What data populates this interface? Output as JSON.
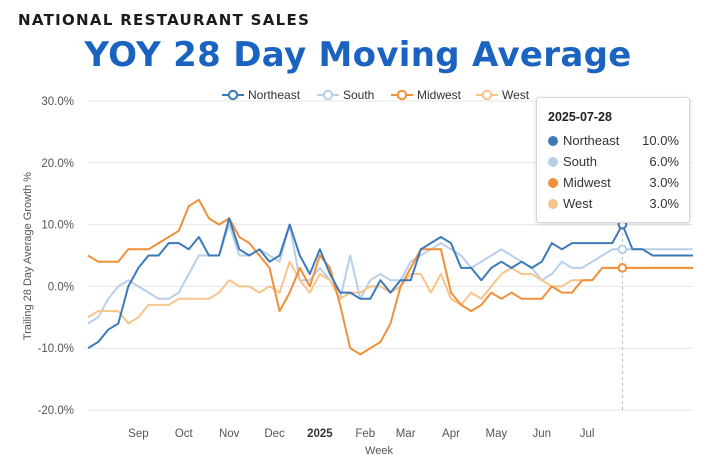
{
  "header": {
    "supertitle": "NATIONAL RESTAURANT SALES",
    "title": "YOY 28 Day Moving Average"
  },
  "colors": {
    "title": "#1a63c0",
    "grid": "#e6e6e6",
    "crosshair": "#bbbbbb"
  },
  "tooltip": {
    "date": "2025-07-28",
    "rows": [
      {
        "name": "Northeast",
        "value": "10.0%",
        "color": "#3d7ab8"
      },
      {
        "name": "South",
        "value": "6.0%",
        "color": "#b8cfea"
      },
      {
        "name": "Midwest",
        "value": "3.0%",
        "color": "#f0903a"
      },
      {
        "name": "West",
        "value": "3.0%",
        "color": "#f7c48a"
      }
    ]
  },
  "chart_data": {
    "type": "line",
    "title": "YOY 28 Day Moving Average",
    "xlabel": "Week",
    "ylabel": "Trailing 28 Day Average Growth %",
    "ylim": [
      -20,
      30
    ],
    "yticks": [
      -20,
      -10,
      0,
      10,
      20,
      30
    ],
    "ytick_labels": [
      "-20.0%",
      "-10.0%",
      "0.0%",
      "10.0%",
      "20.0%",
      "30.0%"
    ],
    "x": [
      0,
      1,
      2,
      3,
      4,
      5,
      6,
      7,
      8,
      9,
      10,
      11,
      12,
      13,
      14,
      15,
      16,
      17,
      18,
      19,
      20,
      21,
      22,
      23,
      24,
      25,
      26,
      27,
      28,
      29,
      30,
      31,
      32,
      33,
      34,
      35,
      36,
      37,
      38,
      39,
      40,
      41,
      42,
      43,
      44,
      45,
      46,
      47,
      48,
      49,
      50,
      51,
      52,
      53,
      54,
      55,
      56,
      57,
      58,
      59,
      60
    ],
    "xticks": [
      {
        "x": 5,
        "label": "Sep"
      },
      {
        "x": 9.5,
        "label": "Oct"
      },
      {
        "x": 14,
        "label": "Nov"
      },
      {
        "x": 18.5,
        "label": "Dec"
      },
      {
        "x": 23,
        "label": "2025"
      },
      {
        "x": 27.5,
        "label": "Feb"
      },
      {
        "x": 31.5,
        "label": "Mar"
      },
      {
        "x": 36,
        "label": "Apr"
      },
      {
        "x": 40.5,
        "label": "May"
      },
      {
        "x": 45,
        "label": "Jun"
      },
      {
        "x": 49.5,
        "label": "Jul"
      }
    ],
    "bold_tick": "2025",
    "legend": [
      "Northeast",
      "South",
      "Midwest",
      "West"
    ],
    "legend_position": "top",
    "series": [
      {
        "name": "Northeast",
        "color": "#3d7ab8",
        "values": [
          -10,
          -9,
          -7,
          -6,
          0,
          3,
          5,
          5,
          7,
          7,
          6,
          8,
          5,
          5,
          11,
          6,
          5,
          6,
          4,
          5,
          10,
          5,
          2,
          6,
          2,
          -1,
          -1,
          -2,
          -2,
          1,
          -1,
          1,
          1,
          6,
          7,
          8,
          7,
          3,
          3,
          1,
          3,
          4,
          3,
          4,
          3,
          4,
          7,
          6,
          7,
          7,
          7,
          7,
          7,
          10,
          6,
          6,
          5,
          5,
          5,
          5,
          5
        ]
      },
      {
        "name": "South",
        "color": "#b8cfea",
        "values": [
          -6,
          -5,
          -2,
          0,
          1,
          0,
          -1,
          -2,
          -2,
          -1,
          2,
          5,
          5,
          5,
          10,
          5,
          5,
          6,
          5,
          4,
          10,
          1,
          1,
          3,
          1,
          -2,
          5,
          -2,
          1,
          2,
          1,
          1,
          4,
          5,
          6,
          7,
          6,
          5,
          3,
          4,
          5,
          6,
          5,
          4,
          3,
          1,
          2,
          4,
          3,
          3,
          4,
          5,
          6,
          6,
          6,
          6,
          6,
          6,
          6,
          6,
          6
        ]
      },
      {
        "name": "Midwest",
        "color": "#f0903a",
        "values": [
          5,
          4,
          4,
          4,
          6,
          6,
          6,
          7,
          8,
          9,
          13,
          14,
          11,
          10,
          11,
          8,
          7,
          5,
          3,
          -4,
          -1,
          3,
          0,
          5,
          3,
          -3,
          -10,
          -11,
          -10,
          -9,
          -6,
          0,
          3,
          6,
          6,
          6,
          -1,
          -3,
          -4,
          -3,
          -1,
          -2,
          -1,
          -2,
          -2,
          -2,
          0,
          -1,
          -1,
          1,
          1,
          3,
          3,
          3,
          3,
          3,
          3,
          3,
          3,
          3,
          3
        ]
      },
      {
        "name": "West",
        "color": "#f7c48a",
        "values": [
          -5,
          -4,
          -4,
          -4,
          -6,
          -5,
          -3,
          -3,
          -3,
          -2,
          -2,
          -2,
          -2,
          -1,
          1,
          0,
          0,
          -1,
          0,
          -1,
          4,
          1,
          -1,
          2,
          1,
          -2,
          -1,
          -1,
          0,
          0,
          -1,
          0,
          2,
          2,
          -1,
          2,
          -2,
          -3,
          -1,
          -2,
          0,
          2,
          3,
          2,
          2,
          1,
          0,
          0,
          1,
          1,
          1,
          3,
          3,
          3,
          3,
          3,
          3,
          3,
          3,
          3,
          3
        ]
      }
    ],
    "highlight_index": 53
  },
  "axes": {
    "y_title": "Trailing 28 Day Average Growth %",
    "x_title": "Week"
  }
}
